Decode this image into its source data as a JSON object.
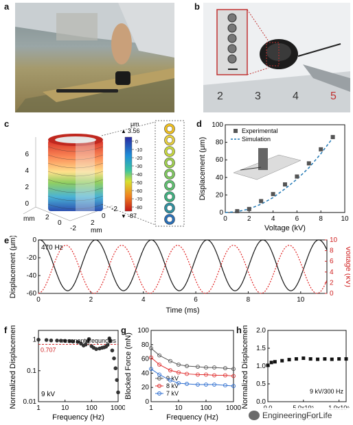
{
  "panels": {
    "a": {
      "label": "a"
    },
    "b": {
      "label": "b",
      "scale_numbers": [
        "2",
        "3",
        "4",
        "5"
      ]
    },
    "c": {
      "label": "c",
      "colorbar_unit": "μm",
      "colorbar_max": "3.56",
      "colorbar_ticks": [
        "0",
        "-10",
        "-20",
        "-30",
        "-40",
        "-50",
        "-60",
        "-70",
        "-80"
      ],
      "colorbar_min": "-87",
      "z_ticks": [
        "0",
        "2",
        "4",
        "6"
      ],
      "x_ticks": [
        "2",
        "0",
        "-2"
      ],
      "y_ticks": [
        "2",
        "0",
        "-2"
      ],
      "unit_label": "mm"
    },
    "d": {
      "label": "d"
    },
    "e": {
      "label": "e",
      "annotation": "470 Hz"
    },
    "f": {
      "label": "f",
      "annotation_resonant": "resonant frequncies",
      "annotation_level": "0.707",
      "annotation_voltage": "9 kV"
    },
    "g": {
      "label": "g"
    },
    "h": {
      "label": "h",
      "annotation": "9 kV/300 Hz"
    }
  },
  "chart_data": [
    {
      "id": "d",
      "type": "scatter",
      "xlabel": "Voltage (kV)",
      "ylabel": "Displacement (μm)",
      "xlim": [
        0,
        10
      ],
      "ylim": [
        0,
        100
      ],
      "xticks": [
        "0",
        "2",
        "4",
        "6",
        "8",
        "10"
      ],
      "yticks": [
        "0",
        "20",
        "40",
        "60",
        "80",
        "100"
      ],
      "legend": "top-left",
      "series": [
        {
          "name": "Experimental",
          "x": [
            1,
            2,
            3,
            4,
            5,
            6,
            7,
            8,
            9
          ],
          "y": [
            1.5,
            4,
            13,
            21,
            32,
            41,
            56,
            72,
            86
          ],
          "color": "#555555"
        },
        {
          "name": "Simulation",
          "x": [
            0,
            1,
            2,
            3,
            4,
            5,
            6,
            7,
            8,
            9
          ],
          "y": [
            0,
            1,
            4,
            9.5,
            17,
            27,
            38,
            51,
            67,
            85
          ],
          "color": "#1f77b4"
        }
      ]
    },
    {
      "id": "e",
      "type": "line",
      "xlabel": "Time (ms)",
      "ylabel": "Displacement (μm)",
      "ylabel_right": "Voltage (kV)",
      "xlim": [
        0,
        11
      ],
      "ylim": [
        -60,
        0
      ],
      "ylim_right": [
        0,
        10
      ],
      "xticks": [
        "0",
        "2",
        "4",
        "6",
        "8",
        "10"
      ],
      "yticks": [
        "0",
        "-20",
        "-40",
        "-60"
      ],
      "yticks_right": [
        "0",
        "2",
        "4",
        "6",
        "8",
        "10"
      ],
      "frequency_hz": 470,
      "series": [
        {
          "name": "Displacement",
          "axis": "left",
          "min": -57,
          "max": 0,
          "phase_ms": 0.05,
          "color": "#111111"
        },
        {
          "name": "Voltage",
          "axis": "right",
          "min": 0,
          "max": 9,
          "phase_ms": 1.05,
          "color": "#e02020"
        }
      ]
    },
    {
      "id": "f",
      "type": "scatter",
      "xlabel": "Frequency (Hz)",
      "ylabel": "Normalized Displacement",
      "xscale": "log",
      "yscale": "log",
      "xlim": [
        1,
        1000
      ],
      "ylim": [
        0.01,
        2
      ],
      "xticks": [
        "1",
        "10",
        "100",
        "1000"
      ],
      "yticks": [
        "0.01",
        "0.1",
        "1"
      ],
      "reference_line": 0.707,
      "series": [
        {
          "name": "9 kV",
          "x": [
            1,
            2,
            3,
            5,
            7,
            10,
            15,
            20,
            30,
            40,
            50,
            60,
            70,
            80,
            100,
            120,
            150,
            200,
            250,
            300,
            350,
            400,
            470,
            500,
            600,
            700,
            800,
            900,
            1000
          ],
          "y": [
            1.0,
            0.98,
            0.95,
            0.94,
            0.93,
            0.92,
            0.9,
            0.88,
            0.85,
            0.75,
            0.65,
            0.7,
            0.9,
            1.05,
            0.62,
            0.55,
            0.5,
            0.52,
            0.55,
            0.57,
            0.6,
            0.68,
            1.1,
            0.9,
            0.45,
            0.25,
            0.12,
            0.05,
            0.02
          ],
          "color": "#333333"
        }
      ]
    },
    {
      "id": "g",
      "type": "line",
      "xlabel": "Frequency (Hz)",
      "ylabel": "Blocked Force (mN)",
      "xscale": "log",
      "xlim": [
        1,
        1000
      ],
      "ylim": [
        0,
        100
      ],
      "xticks": [
        "1",
        "10",
        "100",
        "1000"
      ],
      "yticks": [
        "0",
        "20",
        "40",
        "60",
        "80",
        "100"
      ],
      "legend": "bottom-left",
      "series": [
        {
          "name": "9 kV",
          "x": [
            1,
            2,
            5,
            10,
            20,
            50,
            100,
            200,
            500,
            1000
          ],
          "y": [
            75,
            65,
            57,
            52,
            50,
            49,
            48,
            48,
            47,
            46
          ],
          "color": "#555555"
        },
        {
          "name": "8 kV",
          "x": [
            1,
            2,
            5,
            10,
            20,
            50,
            100,
            200,
            500,
            1000
          ],
          "y": [
            62,
            52,
            44,
            41,
            39,
            38,
            38,
            37,
            37,
            36
          ],
          "color": "#e03030"
        },
        {
          "name": "7 kV",
          "x": [
            1,
            2,
            5,
            10,
            20,
            50,
            100,
            200,
            500,
            1000
          ],
          "y": [
            46,
            38,
            30,
            26,
            25,
            24,
            24,
            24,
            23,
            22
          ],
          "color": "#2f6fd0"
        }
      ]
    },
    {
      "id": "h",
      "type": "scatter",
      "xlabel": "Cycle",
      "ylabel": "Normalized Displacement",
      "xlim": [
        0,
        1100000
      ],
      "ylim": [
        0,
        2.0
      ],
      "xticks": [
        "0.0",
        "5.0x10⁵",
        "1.0x10⁶"
      ],
      "yticks": [
        "0.0",
        "0.5",
        "1.0",
        "1.5",
        "2.0"
      ],
      "series": [
        {
          "name": "9 kV/300 Hz",
          "x": [
            0,
            50000,
            100000,
            200000,
            300000,
            400000,
            500000,
            600000,
            700000,
            800000,
            900000,
            1000000,
            1100000
          ],
          "y": [
            1.02,
            1.1,
            1.12,
            1.15,
            1.18,
            1.2,
            1.22,
            1.2,
            1.19,
            1.2,
            1.19,
            1.2,
            1.2
          ],
          "color": "#111111"
        }
      ]
    }
  ],
  "watermark": {
    "text": "EngineeringForLife"
  }
}
